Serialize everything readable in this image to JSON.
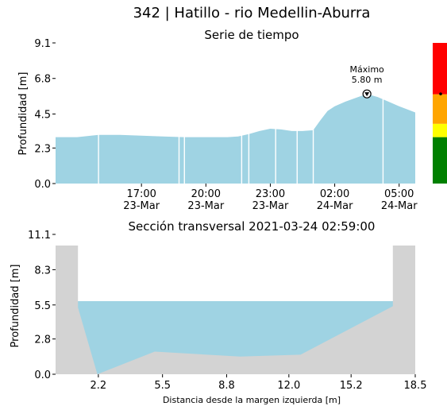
{
  "chart_data": [
    {
      "type": "area",
      "title": "342 | Hatillo - rio Medellin-Aburra",
      "subtitle": "Serie de tiempo",
      "ylabel": "Profundidad [m]",
      "xlabel": "",
      "ylim": [
        0.0,
        9.1
      ],
      "yticks": [
        "0.0",
        "2.3",
        "4.5",
        "6.8",
        "9.1"
      ],
      "xlim": [
        "2021-03-23 13:00",
        "2021-03-24 05:45"
      ],
      "xticks": [
        {
          "value": "2021-03-23 17:00",
          "line1": "17:00",
          "line2": "23-Mar"
        },
        {
          "value": "2021-03-23 20:00",
          "line1": "20:00",
          "line2": "23-Mar"
        },
        {
          "value": "2021-03-23 23:00",
          "line1": "23:00",
          "line2": "23-Mar"
        },
        {
          "value": "2021-03-24 02:00",
          "line1": "02:00",
          "line2": "24-Mar"
        },
        {
          "value": "2021-03-24 05:00",
          "line1": "05:00",
          "line2": "24-Mar"
        }
      ],
      "series": [
        {
          "color": "#9fd3e3",
          "x": [
            "2021-03-23 13:00",
            "2021-03-23 14:00",
            "2021-03-23 15:00",
            "2021-03-23 16:00",
            "2021-03-23 17:00",
            "2021-03-23 18:00",
            "2021-03-23 19:00",
            "2021-03-23 20:00",
            "2021-03-23 21:00",
            "2021-03-23 21:30",
            "2021-03-23 22:00",
            "2021-03-23 22:30",
            "2021-03-23 23:00",
            "2021-03-23 23:30",
            "2021-03-24 00:00",
            "2021-03-24 00:30",
            "2021-03-24 01:00",
            "2021-03-24 01:20",
            "2021-03-24 01:40",
            "2021-03-24 02:00",
            "2021-03-24 02:30",
            "2021-03-24 03:00",
            "2021-03-24 03:30",
            "2021-03-24 04:00",
            "2021-03-24 04:30",
            "2021-03-24 05:00",
            "2021-03-24 05:45"
          ],
          "y": [
            3.0,
            3.0,
            3.15,
            3.15,
            3.1,
            3.05,
            3.0,
            3.0,
            3.0,
            3.05,
            3.2,
            3.4,
            3.55,
            3.5,
            3.4,
            3.4,
            3.45,
            4.1,
            4.7,
            5.0,
            5.3,
            5.55,
            5.8,
            5.6,
            5.3,
            5.0,
            4.6
          ]
        }
      ],
      "gaps": [
        "2021-03-23 15:00",
        "2021-03-23 18:45",
        "2021-03-23 19:00",
        "2021-03-23 21:40",
        "2021-03-23 22:00",
        "2021-03-23 23:15",
        "2021-03-24 00:15",
        "2021-03-24 01:00",
        "2021-03-24 04:15"
      ],
      "annotation": {
        "x": "2021-03-24 03:30",
        "y": 5.8,
        "line1": "Máximo",
        "line2": "5.80 m"
      },
      "color_scale": {
        "bands": [
          {
            "color": "#008000",
            "fraction": 0.33
          },
          {
            "color": "#ffff00",
            "fraction": 0.095
          },
          {
            "color": "#ffa500",
            "fraction": 0.21
          },
          {
            "color": "#ff0000",
            "fraction": 0.365
          }
        ],
        "marker_level": 5.8
      }
    },
    {
      "type": "area",
      "title": "Sección transversal 2021-03-24 02:59:00",
      "xlabel": "Distancia desde la margen izquierda [m]",
      "ylabel": "Profundidad [m]",
      "xlim": [
        0.0,
        18.5
      ],
      "ylim": [
        0.0,
        11.1
      ],
      "xticks": [
        "2.2",
        "5.5",
        "8.8",
        "12.0",
        "15.2",
        "18.5"
      ],
      "yticks": [
        "0.0",
        "2.8",
        "5.5",
        "8.3",
        "11.1"
      ],
      "bank_color": "#d3d3d3",
      "water_color": "#9fd3e3",
      "profile_x": [
        0.0,
        1.15,
        2.15,
        5.1,
        9.5,
        12.6,
        17.35,
        18.5
      ],
      "profile_y": [
        11.1,
        5.3,
        0.0,
        1.8,
        1.4,
        1.55,
        5.4,
        11.1
      ],
      "water_level": 5.8
    }
  ]
}
